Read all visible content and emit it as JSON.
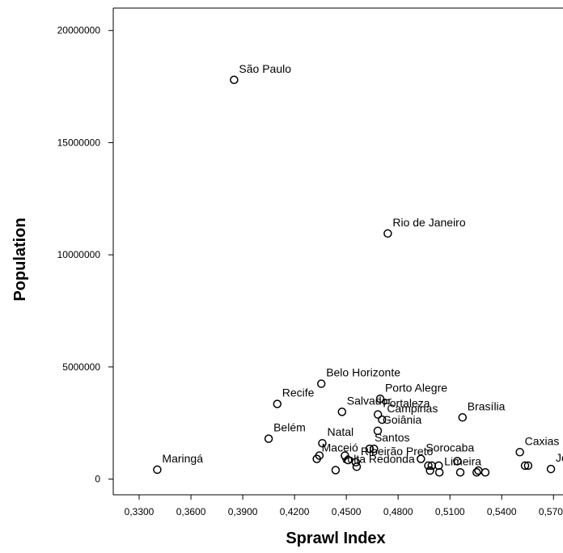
{
  "chart_data": {
    "type": "scatter",
    "xlabel": "Sprawl Index",
    "ylabel": "Population",
    "xlim": [
      0.315,
      0.5755
    ],
    "ylim": [
      -700000,
      21000000
    ],
    "x_ticks": [
      "0,3300",
      "0,3600",
      "0,3900",
      "0,4200",
      "0,4500",
      "0,4800",
      "0,5100",
      "0,5400",
      "0,5700"
    ],
    "x_tick_values": [
      0.33,
      0.36,
      0.39,
      0.42,
      0.45,
      0.48,
      0.51,
      0.54,
      0.57
    ],
    "y_ticks": [
      "0",
      "5000000",
      "10000000",
      "15000000",
      "20000000"
    ],
    "y_tick_values": [
      0,
      5000000,
      10000000,
      15000000,
      20000000
    ],
    "grid": false,
    "legend": "none",
    "points": [
      {
        "label": "São Paulo",
        "x": 0.385,
        "y": 17800000
      },
      {
        "label": "Rio de Janeiro",
        "x": 0.474,
        "y": 10950000
      },
      {
        "label": "Belo Horizonte",
        "x": 0.4355,
        "y": 4250000
      },
      {
        "label": "Porto Alegre",
        "x": 0.4696,
        "y": 3580000
      },
      {
        "label": "Recife",
        "x": 0.41,
        "y": 3350000
      },
      {
        "label": "Fortaleza",
        "x": 0.4683,
        "y": 2880000
      },
      {
        "label": "Salvador",
        "x": 0.4475,
        "y": 3000000
      },
      {
        "label": "Campinas",
        "x": 0.4707,
        "y": 2650000
      },
      {
        "label": "Brasília",
        "x": 0.5173,
        "y": 2750000
      },
      {
        "label": "Goiânia",
        "x": 0.4682,
        "y": 2150000
      },
      {
        "label": "Santos",
        "x": 0.4635,
        "y": 1350000
      },
      {
        "label": "Belém",
        "x": 0.405,
        "y": 1800000
      },
      {
        "label": "Natal",
        "x": 0.4361,
        "y": 1600000
      },
      {
        "label": "Sorocaba",
        "x": 0.4932,
        "y": 900000
      },
      {
        "label": "Caxias do Sul",
        "x": 0.5505,
        "y": 1200000
      },
      {
        "label": "Maringá",
        "x": 0.3405,
        "y": 420000
      },
      {
        "label": "Maceió",
        "x": 0.4329,
        "y": 900000
      },
      {
        "label": "Ribeirão Preto",
        "x": 0.4555,
        "y": 750000
      },
      {
        "label": "Volta Redonda",
        "x": 0.4438,
        "y": 400000
      },
      {
        "label": "Joinville",
        "x": 0.5685,
        "y": 450000
      },
      {
        "label": "Limeira",
        "x": 0.5039,
        "y": 300000
      },
      {
        "label": "",
        "x": 0.4344,
        "y": 1050000
      },
      {
        "label": "",
        "x": 0.4492,
        "y": 1050000
      },
      {
        "label": "",
        "x": 0.451,
        "y": 850000
      },
      {
        "label": "",
        "x": 0.456,
        "y": 550000
      },
      {
        "label": "",
        "x": 0.466,
        "y": 1350000
      },
      {
        "label": "",
        "x": 0.4975,
        "y": 600000
      },
      {
        "label": "",
        "x": 0.4995,
        "y": 600000
      },
      {
        "label": "",
        "x": 0.4985,
        "y": 380000
      },
      {
        "label": "",
        "x": 0.5035,
        "y": 600000
      },
      {
        "label": "",
        "x": 0.5143,
        "y": 800000
      },
      {
        "label": "",
        "x": 0.516,
        "y": 300000
      },
      {
        "label": "",
        "x": 0.5255,
        "y": 300000
      },
      {
        "label": "",
        "x": 0.5265,
        "y": 380000
      },
      {
        "label": "",
        "x": 0.5305,
        "y": 300000
      },
      {
        "label": "",
        "x": 0.5535,
        "y": 600000
      },
      {
        "label": "",
        "x": 0.5553,
        "y": 600000
      }
    ]
  }
}
